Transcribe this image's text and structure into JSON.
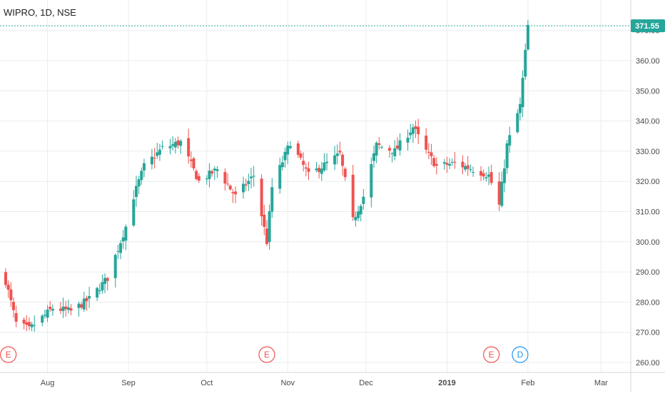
{
  "header": {
    "symbol_label": "WIPRO, 1D, NSE"
  },
  "colors": {
    "up": "#26a69a",
    "down": "#ef5350",
    "grid": "#e9ecef",
    "axis_text": "#4a4a4a",
    "earnings": "#ef5350",
    "dividend": "#2196f3",
    "price_line": "#26a69a"
  },
  "chart_data": {
    "type": "candlestick",
    "title": "WIPRO, 1D, NSE",
    "y_ticks": [
      260,
      270,
      280,
      290,
      300,
      310,
      320,
      330,
      340,
      350,
      360,
      370
    ],
    "y_tick_labels": [
      "260.00",
      "270.00",
      "280.00",
      "290.00",
      "300.00",
      "310.00",
      "320.00",
      "330.00",
      "340.00",
      "350.00",
      "360.00",
      "370.00"
    ],
    "ylim": [
      257.5,
      375.5
    ],
    "x_range": [
      "2018-07-16",
      "2019-03-08"
    ],
    "x_ticks": [
      {
        "date": "2018-08-01",
        "label": "Aug"
      },
      {
        "date": "2018-09-01",
        "label": "Sep"
      },
      {
        "date": "2018-10-01",
        "label": "Oct"
      },
      {
        "date": "2018-11-01",
        "label": "Nov"
      },
      {
        "date": "2018-12-01",
        "label": "Dec"
      },
      {
        "date": "2019-01-01",
        "label": "2019"
      },
      {
        "date": "2019-02-01",
        "label": "Feb"
      },
      {
        "date": "2019-03-01",
        "label": "Mar"
      }
    ],
    "last_price": 371.55,
    "last_price_label": "371.55",
    "events": [
      {
        "date": "2018-07-17",
        "label": "E",
        "kind": "earnings"
      },
      {
        "date": "2018-10-24",
        "label": "E",
        "kind": "earnings"
      },
      {
        "date": "2019-01-18",
        "label": "E",
        "kind": "earnings"
      },
      {
        "date": "2019-01-29",
        "label": "D",
        "kind": "dividend"
      }
    ],
    "anchors": [
      [
        "2018-07-16",
        287
      ],
      [
        "2018-07-18",
        280
      ],
      [
        "2018-07-20",
        273
      ],
      [
        "2018-07-25",
        271
      ],
      [
        "2018-08-03",
        278
      ],
      [
        "2018-08-10",
        277
      ],
      [
        "2018-08-17",
        281
      ],
      [
        "2018-08-24",
        288
      ],
      [
        "2018-08-31",
        305
      ],
      [
        "2018-09-03",
        315
      ],
      [
        "2018-09-07",
        325
      ],
      [
        "2018-09-14",
        331
      ],
      [
        "2018-09-21",
        333
      ],
      [
        "2018-09-28",
        320
      ],
      [
        "2018-10-05",
        324
      ],
      [
        "2018-10-12",
        315
      ],
      [
        "2018-10-19",
        322
      ],
      [
        "2018-10-24",
        300
      ],
      [
        "2018-10-26",
        318
      ],
      [
        "2018-11-02",
        333
      ],
      [
        "2018-11-09",
        322
      ],
      [
        "2018-11-16",
        326
      ],
      [
        "2018-11-21",
        329
      ],
      [
        "2018-11-26",
        307
      ],
      [
        "2018-11-30",
        315
      ],
      [
        "2018-12-05",
        332
      ],
      [
        "2018-12-12",
        330
      ],
      [
        "2018-12-19",
        338
      ],
      [
        "2018-12-24",
        330
      ],
      [
        "2018-12-28",
        325
      ],
      [
        "2019-01-04",
        326
      ],
      [
        "2019-01-11",
        324
      ],
      [
        "2019-01-17",
        322
      ],
      [
        "2019-01-21",
        312
      ],
      [
        "2019-01-24",
        332
      ],
      [
        "2019-01-29",
        345
      ],
      [
        "2019-02-01",
        371.5
      ]
    ]
  }
}
